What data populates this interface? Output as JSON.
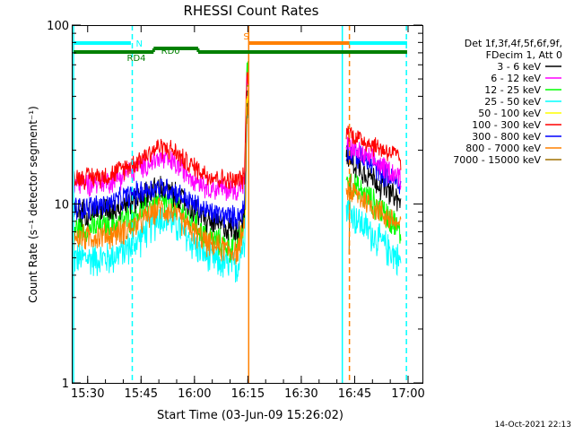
{
  "chart_data": {
    "type": "line",
    "title": "RHESSI Count Rates",
    "xlabel": "Start Time (03-Jun-09 15:26:02)",
    "ylabel": "Count Rate (s⁻¹ detector segment⁻¹)",
    "yscale": "log",
    "ylim": [
      1,
      100
    ],
    "xlim_minutes_after_start": [
      -0.5,
      98.0
    ],
    "x_unit": "minutes after 15:26:02",
    "x_tick_labels": [
      "15:30",
      "15:45",
      "16:00",
      "16:15",
      "16:30",
      "16:45",
      "17:00"
    ],
    "x_tick_minutes": [
      3.97,
      18.97,
      33.97,
      48.97,
      63.97,
      78.97,
      93.97
    ],
    "y_tick_labels": [
      "1",
      "10",
      "100"
    ],
    "y_tick_values": [
      1,
      10,
      100
    ],
    "legend": {
      "position": "right",
      "header": [
        "Det 1f,3f,4f,5f,6f,9f,",
        "FDecim 1, Att 0"
      ],
      "entries": [
        {
          "label": "3 - 6 keV",
          "color": "#000000"
        },
        {
          "label": "6 - 12 keV",
          "color": "#ff00ff"
        },
        {
          "label": "12 - 25 keV",
          "color": "#00ff00"
        },
        {
          "label": "25 - 50 keV",
          "color": "#00ffff"
        },
        {
          "label": "50 - 100 keV",
          "color": "#ffff00"
        },
        {
          "label": "100 - 300 keV",
          "color": "#ff0000"
        },
        {
          "label": "300 - 800 keV",
          "color": "#0000ff"
        },
        {
          "label": "800 - 7000 keV",
          "color": "#ff8000"
        },
        {
          "label": "7000 - 15000 keV",
          "color": "#a07000"
        }
      ]
    },
    "series": [
      {
        "name": "3 - 6 keV",
        "color": "#000000",
        "noise": 0.1,
        "segments": [
          [
            [
              0,
              9
            ],
            [
              10,
              9.4
            ],
            [
              17,
              10.5
            ],
            [
              24,
              12.5
            ],
            [
              28,
              11.5
            ],
            [
              32,
              10
            ],
            [
              38,
              8
            ],
            [
              44,
              7.3
            ],
            [
              46,
              7.3
            ],
            [
              47,
              8.5
            ],
            [
              48,
              9
            ],
            [
              48.6,
              35
            ],
            [
              49.1,
              40
            ]
          ],
          [
            [
              76.6,
              18
            ],
            [
              79,
              17
            ],
            [
              85,
              13.5
            ],
            [
              90,
              11
            ],
            [
              92,
              10
            ]
          ]
        ]
      },
      {
        "name": "6 - 12 keV",
        "color": "#ff00ff",
        "noise": 0.09,
        "segments": [
          [
            [
              0,
              13
            ],
            [
              10,
              13.5
            ],
            [
              17,
              15.5
            ],
            [
              24,
              18
            ],
            [
              28,
              17
            ],
            [
              32,
              15
            ],
            [
              38,
              12.5
            ],
            [
              44,
              12
            ],
            [
              46,
              12
            ],
            [
              47,
              13
            ],
            [
              48,
              13
            ],
            [
              48.6,
              45
            ],
            [
              49.1,
              50
            ]
          ],
          [
            [
              76.6,
              22
            ],
            [
              79,
              20
            ],
            [
              85,
              17
            ],
            [
              90,
              15
            ],
            [
              92,
              14
            ]
          ]
        ]
      },
      {
        "name": "12 - 25 keV",
        "color": "#00ff00",
        "noise": 0.11,
        "segments": [
          [
            [
              0,
              7.3
            ],
            [
              10,
              7.5
            ],
            [
              17,
              8.7
            ],
            [
              24,
              10.5
            ],
            [
              28,
              10
            ],
            [
              32,
              8.5
            ],
            [
              38,
              6.5
            ],
            [
              44,
              5.8
            ],
            [
              46,
              6
            ],
            [
              47,
              7
            ],
            [
              48,
              8
            ],
            [
              48.6,
              50
            ],
            [
              49.1,
              62
            ]
          ],
          [
            [
              76.6,
              14
            ],
            [
              79,
              12.5
            ],
            [
              85,
              10
            ],
            [
              90,
              8
            ],
            [
              92,
              6.5
            ]
          ]
        ]
      },
      {
        "name": "25 - 50 keV",
        "color": "#00ffff",
        "noise": 0.13,
        "segments": [
          [
            [
              0,
              5
            ],
            [
              10,
              5
            ],
            [
              17,
              6
            ],
            [
              24,
              8.5
            ],
            [
              28,
              8
            ],
            [
              32,
              6.5
            ],
            [
              38,
              5
            ],
            [
              44,
              4.5
            ],
            [
              46,
              4.5
            ],
            [
              47,
              5.5
            ],
            [
              48,
              6
            ],
            [
              48.6,
              30
            ],
            [
              49.1,
              40
            ]
          ],
          [
            [
              76.6,
              10
            ],
            [
              79,
              8.5
            ],
            [
              85,
              6.5
            ],
            [
              90,
              5.3
            ],
            [
              92,
              4.7
            ]
          ]
        ]
      },
      {
        "name": "50 - 100 keV",
        "color": "#ffff00",
        "noise": 0.08,
        "segments": [
          [
            [
              48.2,
              8
            ],
            [
              48.6,
              35
            ],
            [
              49.1,
              45
            ]
          ]
        ]
      },
      {
        "name": "100 - 300 keV",
        "color": "#ff0000",
        "noise": 0.08,
        "segments": [
          [
            [
              0,
              14
            ],
            [
              10,
              14.5
            ],
            [
              17,
              17
            ],
            [
              24,
              21
            ],
            [
              28,
              20
            ],
            [
              32,
              17
            ],
            [
              38,
              14.5
            ],
            [
              44,
              13.5
            ],
            [
              46,
              13.5
            ],
            [
              47,
              14
            ],
            [
              48,
              14
            ],
            [
              48.6,
              48
            ],
            [
              49.1,
              55
            ]
          ],
          [
            [
              76.6,
              26
            ],
            [
              79,
              24
            ],
            [
              85,
              21
            ],
            [
              90,
              19
            ],
            [
              92,
              17.5
            ]
          ]
        ]
      },
      {
        "name": "300 - 800 keV",
        "color": "#0000ff",
        "noise": 0.09,
        "segments": [
          [
            [
              0,
              9.5
            ],
            [
              10,
              10
            ],
            [
              17,
              11.5
            ],
            [
              24,
              12.5
            ],
            [
              28,
              12
            ],
            [
              32,
              10.5
            ],
            [
              38,
              9
            ],
            [
              44,
              8.5
            ],
            [
              46,
              8.5
            ],
            [
              47,
              9
            ],
            [
              48,
              9.5
            ],
            [
              48.6,
              30
            ],
            [
              49.1,
              35
            ]
          ],
          [
            [
              76.6,
              20
            ],
            [
              79,
              19
            ],
            [
              85,
              16
            ],
            [
              90,
              13.5
            ],
            [
              92,
              12.5
            ]
          ]
        ]
      },
      {
        "name": "800 - 7000 keV",
        "color": "#ff8000",
        "noise": 0.1,
        "segments": [
          [
            [
              0,
              6.5
            ],
            [
              10,
              6.7
            ],
            [
              17,
              7.5
            ],
            [
              24,
              9.5
            ],
            [
              28,
              9
            ],
            [
              32,
              7.5
            ],
            [
              38,
              6
            ],
            [
              44,
              5.5
            ],
            [
              46,
              5.5
            ],
            [
              47,
              6.5
            ],
            [
              48,
              7
            ],
            [
              48.6,
              30
            ],
            [
              49.1,
              38
            ]
          ],
          [
            [
              76.6,
              12
            ],
            [
              79,
              11.5
            ],
            [
              85,
              9.5
            ],
            [
              90,
              8
            ],
            [
              92,
              7.5
            ]
          ]
        ]
      },
      {
        "name": "7000 - 15000 keV",
        "color": "#a07000",
        "noise": 0.06,
        "segments": [
          [
            [
              48.3,
              10
            ],
            [
              48.6,
              30
            ],
            [
              49.1,
              35
            ]
          ],
          [
            [
              77.4,
              5
            ],
            [
              77.6,
              12
            ],
            [
              78,
              14
            ]
          ]
        ]
      }
    ],
    "vertical_lines": [
      {
        "x": 0,
        "color": "#00ffff",
        "style": "solid"
      },
      {
        "x": 16.5,
        "color": "#00ffff",
        "style": "dashed"
      },
      {
        "x": 75.5,
        "color": "#00ffff",
        "style": "solid"
      },
      {
        "x": 93.5,
        "color": "#00ffff",
        "style": "dashed"
      },
      {
        "x": 49.2,
        "color": "#ff8000",
        "style": "solid"
      },
      {
        "x": 77.5,
        "color": "#ff8000",
        "style": "dashed"
      }
    ],
    "status_bars": [
      {
        "color": "#00ffff",
        "x_ranges": [
          [
            0,
            16.1
          ],
          [
            76,
            93.7
          ]
        ],
        "level": "upper"
      },
      {
        "color": "#ff8000",
        "x_ranges": [
          [
            49.2,
            77.5
          ]
        ],
        "level": "upper"
      },
      {
        "color": "#008000",
        "x_ranges": [
          [
            0,
            22.5
          ],
          [
            35,
            93.7
          ]
        ],
        "level": "middle"
      },
      {
        "color": "#008000",
        "x_ranges": [
          [
            22.5,
            35
          ]
        ],
        "level": "raised"
      }
    ],
    "annotations": [
      {
        "text": "N",
        "color": "#00ffff",
        "x": 17.5
      },
      {
        "text": "S",
        "color": "#ff8000",
        "x": 47.7
      },
      {
        "text": "RD0",
        "color": "#008000",
        "x": 24.6
      },
      {
        "text": "RD4",
        "color": "#008000",
        "x": 15.0
      }
    ],
    "timestamp": "14-Oct-2021 22:13"
  }
}
